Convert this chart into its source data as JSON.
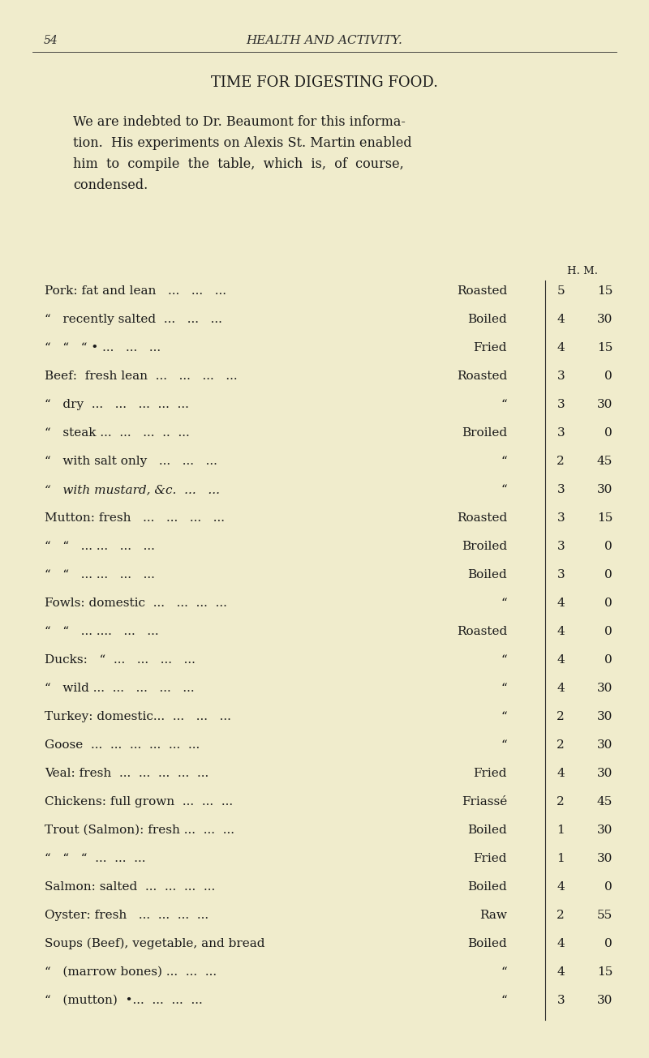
{
  "bg_color": "#f0eccc",
  "page_number": "54",
  "header": "HEALTH AND ACTIVITY.",
  "title": "TIME FOR DIGESTING FOOD.",
  "intro": [
    "We are indebted to Dr. Beaumont for this informa-",
    "tion.  His experiments on Alexis St. Martin enabled",
    "him  to  compile  the  table,  which  is,  of  course,",
    "condensed."
  ],
  "col_header": "H. M.",
  "rows": [
    {
      "food": "Pork: fat and lean   ...   ...   ...",
      "method": "Roasted",
      "h": "5",
      "m": "15",
      "italic_food": false
    },
    {
      "food": "“   recently salted  ...   ...   ...",
      "method": "Boiled",
      "h": "4",
      "m": "30",
      "italic_food": false
    },
    {
      "food": "“   “   “ • ...   ...   ...",
      "method": "Fried",
      "h": "4",
      "m": "15",
      "italic_food": false
    },
    {
      "food": "Beef:  fresh lean  ...   ...   ...   ...",
      "method": "Roasted",
      "h": "3",
      "m": "0",
      "italic_food": false
    },
    {
      "food": "“   dry  ...   ...   ...  ...  ...",
      "method": "“",
      "h": "3",
      "m": "30",
      "italic_food": false
    },
    {
      "food": "“   steak ...  ...   ...  ..  ...",
      "method": "Broiled",
      "h": "3",
      "m": "0",
      "italic_food": false
    },
    {
      "food": "“   with salt only   ...   ...   ...",
      "method": "“",
      "h": "2",
      "m": "45",
      "italic_food": false
    },
    {
      "food": "“   with mustard, &c.  ...   ...",
      "method": "“",
      "h": "3",
      "m": "30",
      "italic_food": true
    },
    {
      "food": "Mutton: fresh   ...   ...   ...   ...",
      "method": "Roasted",
      "h": "3",
      "m": "15",
      "italic_food": false
    },
    {
      "food": "“   “   ... ...   ...   ...",
      "method": "Broiled",
      "h": "3",
      "m": "0",
      "italic_food": false
    },
    {
      "food": "“   “   ... ...   ...   ...",
      "method": "Boiled",
      "h": "3",
      "m": "0",
      "italic_food": false
    },
    {
      "food": "Fowls: domestic  ...   ...  ...  ...",
      "method": "“",
      "h": "4",
      "m": "0",
      "italic_food": false
    },
    {
      "food": "“   “   ... ....   ...   ...",
      "method": "Roasted",
      "h": "4",
      "m": "0",
      "italic_food": false
    },
    {
      "food": "Ducks:   “  ...   ...   ...   ...",
      "method": "“",
      "h": "4",
      "m": "0",
      "italic_food": false
    },
    {
      "food": "“   wild ...  ...   ...   ...   ...",
      "method": "“",
      "h": "4",
      "m": "30",
      "italic_food": false
    },
    {
      "food": "Turkey: domestic...  ...   ...   ...",
      "method": "“",
      "h": "2",
      "m": "30",
      "italic_food": false
    },
    {
      "food": "Goose  ...  ...  ...  ...  ...  ...",
      "method": "“",
      "h": "2",
      "m": "30",
      "italic_food": false
    },
    {
      "food": "Veal: fresh  ...  ...  ...  ...  ...",
      "method": "Fried",
      "h": "4",
      "m": "30",
      "italic_food": false
    },
    {
      "food": "Chickens: full grown  ...  ...  ...",
      "method": "Friassé",
      "h": "2",
      "m": "45",
      "italic_food": false
    },
    {
      "food": "Trout (Salmon): fresh ...  ...  ...",
      "method": "Boiled",
      "h": "1",
      "m": "30",
      "italic_food": false
    },
    {
      "food": "“   “   “  ...  ...  ...",
      "method": "Fried",
      "h": "1",
      "m": "30",
      "italic_food": false
    },
    {
      "food": "Salmon: salted  ...  ...  ...  ...",
      "method": "Boiled",
      "h": "4",
      "m": "0",
      "italic_food": false
    },
    {
      "food": "Oyster: fresh   ...  ...  ...  ...",
      "method": "Raw",
      "h": "2",
      "m": "55",
      "italic_food": false
    },
    {
      "food": "Soups (Beef), vegetable, and bread",
      "method": "Boiled",
      "h": "4",
      "m": "0",
      "italic_food": false
    },
    {
      "food": "“   (marrow bones) ...  ...  ...",
      "method": "“",
      "h": "4",
      "m": "15",
      "italic_food": false
    },
    {
      "food": "“   (mutton)  •...  ...  ...  ...",
      "method": "“",
      "h": "3",
      "m": "30",
      "italic_food": false
    }
  ]
}
